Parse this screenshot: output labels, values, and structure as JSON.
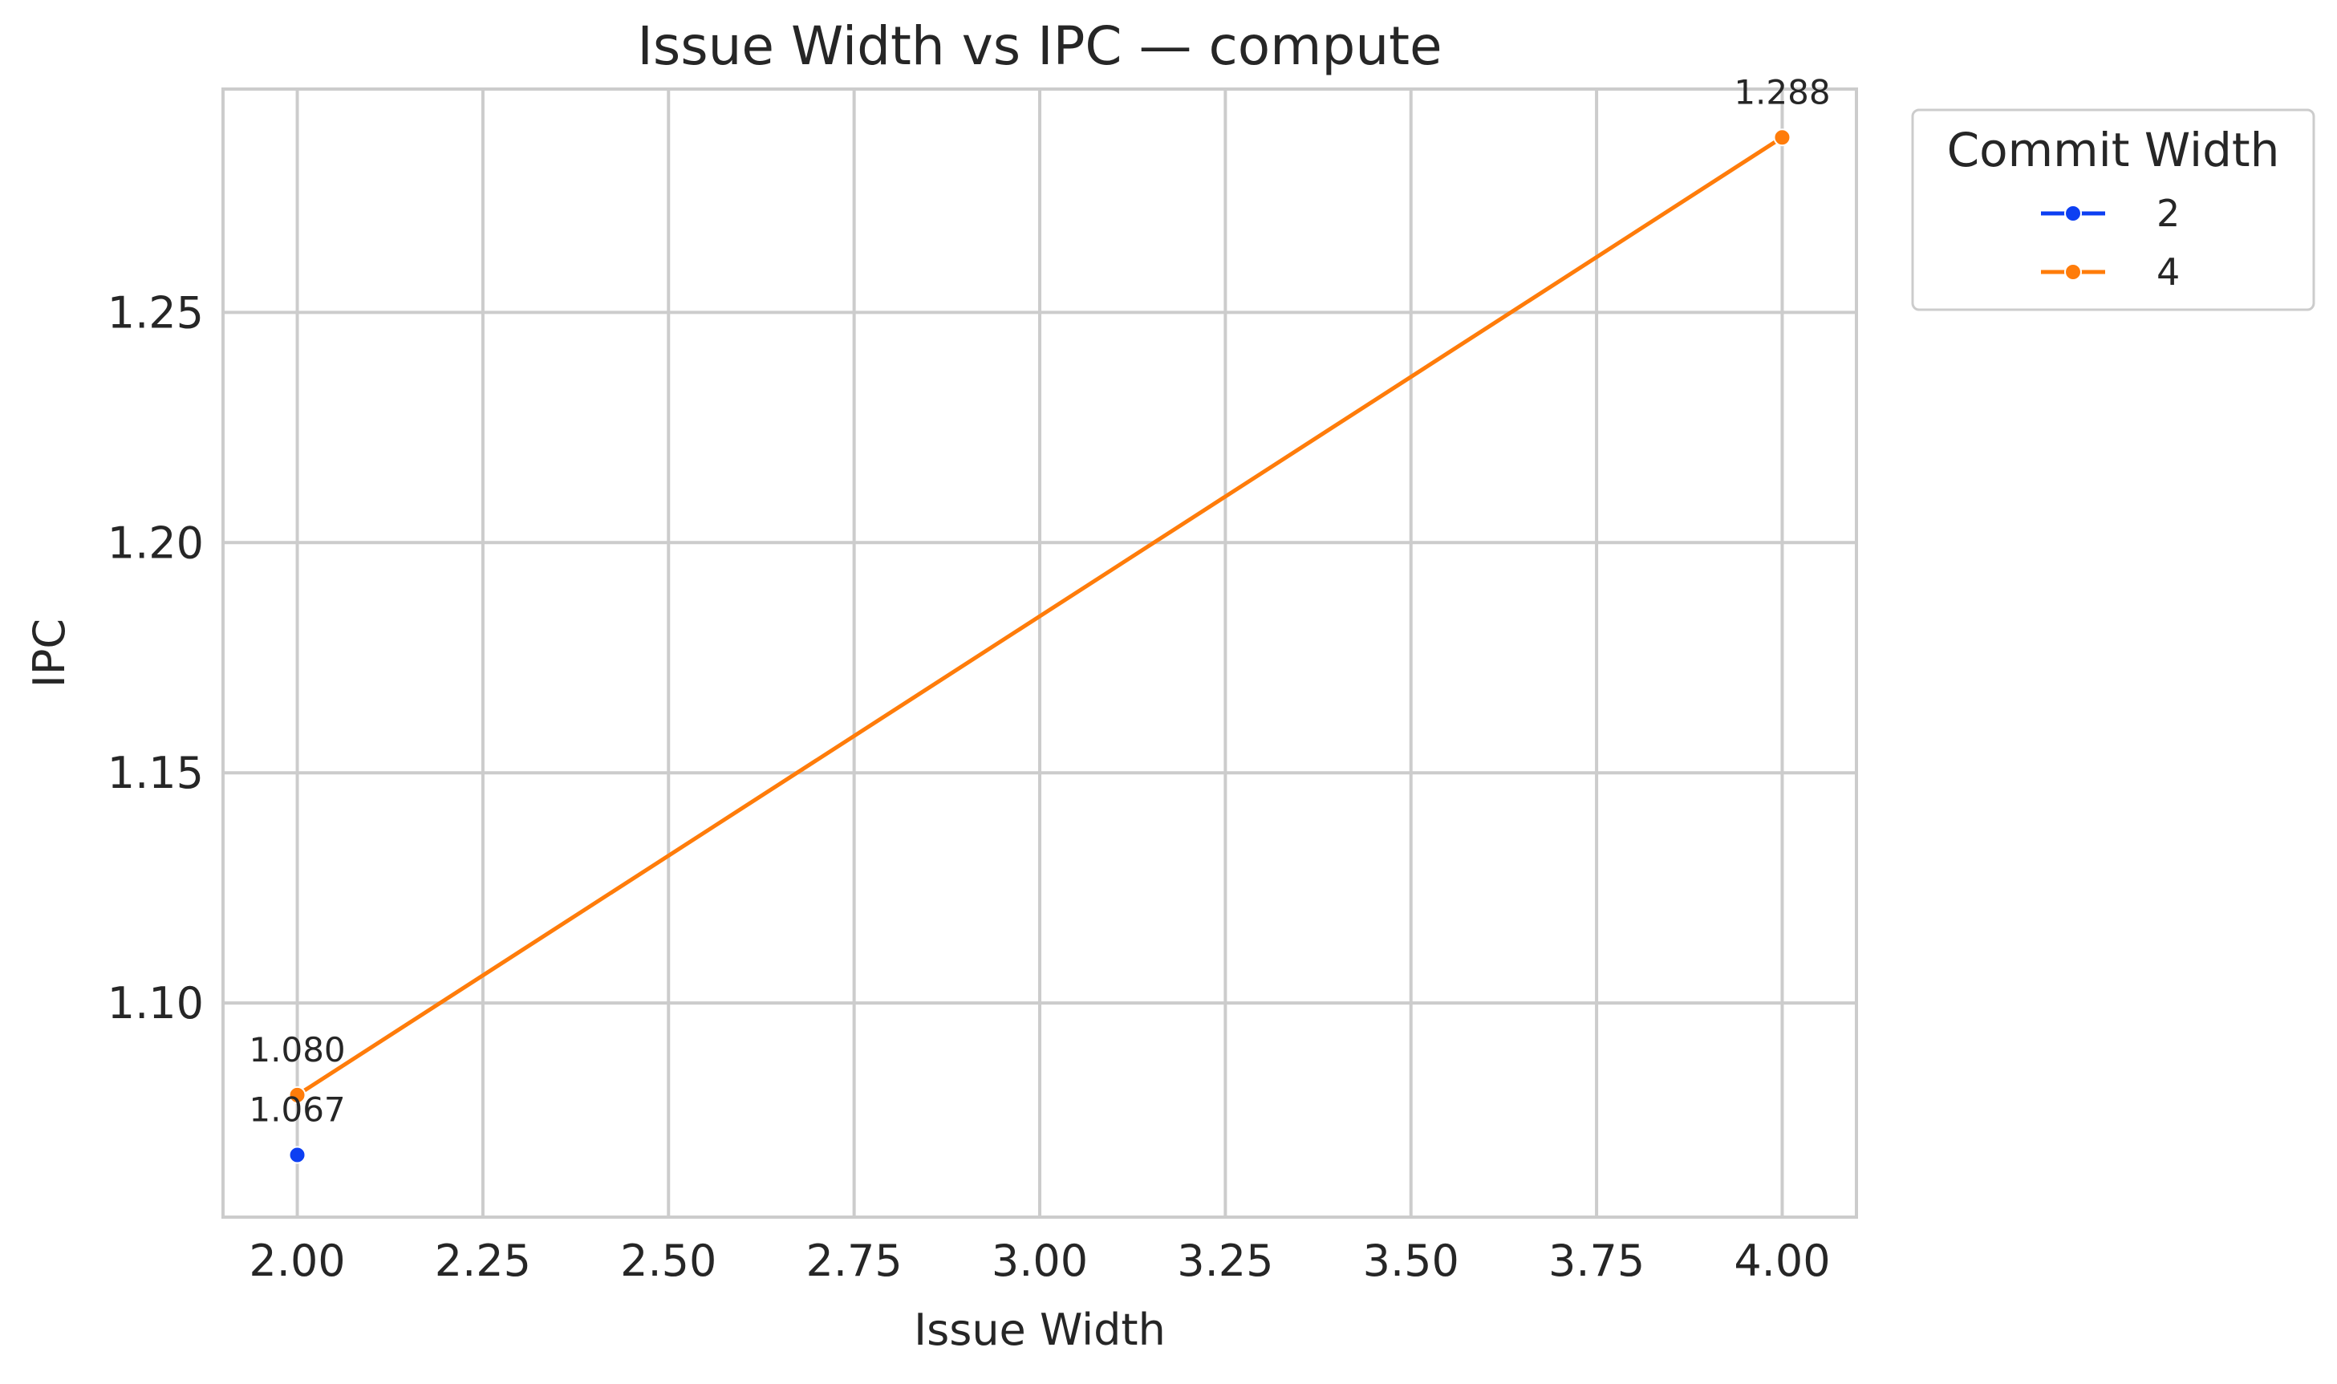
{
  "chart_data": {
    "type": "line",
    "title": "Issue Width vs IPC — compute",
    "xlabel": "Issue Width",
    "ylabel": "IPC",
    "xlim": [
      1.9,
      4.1
    ],
    "ylim": [
      1.0535,
      1.2985
    ],
    "xticks": [
      2.0,
      2.25,
      2.5,
      2.75,
      3.0,
      3.25,
      3.5,
      3.75,
      4.0
    ],
    "xtick_labels": [
      "2.00",
      "2.25",
      "2.50",
      "2.75",
      "3.00",
      "3.25",
      "3.50",
      "3.75",
      "4.00"
    ],
    "yticks": [
      1.1,
      1.15,
      1.2,
      1.25
    ],
    "ytick_labels": [
      "1.10",
      "1.15",
      "1.20",
      "1.25"
    ],
    "grid": true,
    "legend": {
      "title": "Commit Width",
      "placement": "outside-upper-right"
    },
    "series": [
      {
        "name": "2",
        "color": "#0d3ff2",
        "x": [
          2.0
        ],
        "y": [
          1.067
        ],
        "labels": [
          "1.067"
        ]
      },
      {
        "name": "4",
        "color": "#ff7c0a",
        "x": [
          2.0,
          4.0
        ],
        "y": [
          1.08,
          1.288
        ],
        "labels": [
          "1.080",
          "1.288"
        ]
      }
    ]
  }
}
